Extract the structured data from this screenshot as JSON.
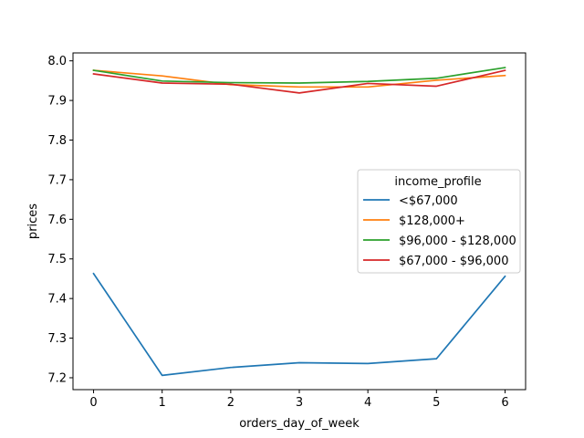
{
  "chart_data": {
    "type": "line",
    "xlabel": "orders_day_of_week",
    "ylabel": "prices",
    "x": [
      0,
      1,
      2,
      3,
      4,
      5,
      6
    ],
    "xlim": [
      -0.3,
      6.3
    ],
    "ylim": [
      7.17,
      8.02
    ],
    "xticks": [
      0,
      1,
      2,
      3,
      4,
      5,
      6
    ],
    "yticks": [
      7.2,
      7.3,
      7.4,
      7.5,
      7.6,
      7.7,
      7.8,
      7.9,
      8.0
    ],
    "ytick_labels": [
      "7.2",
      "7.3",
      "7.4",
      "7.5",
      "7.6",
      "7.7",
      "7.8",
      "7.9",
      "8.0"
    ],
    "grid": false,
    "legend": {
      "title": "income_profile",
      "placement": "center-right"
    },
    "series": [
      {
        "name": "<$67,000",
        "color": "#1f77b4",
        "values": [
          7.463,
          7.206,
          7.226,
          7.238,
          7.236,
          7.248,
          7.456
        ]
      },
      {
        "name": "$128,000+",
        "color": "#ff7f0e",
        "values": [
          7.976,
          7.962,
          7.94,
          7.934,
          7.934,
          7.951,
          7.963
        ]
      },
      {
        "name": "$96,000 - $128,000",
        "color": "#2ca02c",
        "values": [
          7.976,
          7.949,
          7.945,
          7.944,
          7.948,
          7.956,
          7.983
        ]
      },
      {
        "name": "$67,000 - $96,000",
        "color": "#d62728",
        "values": [
          7.967,
          7.944,
          7.941,
          7.919,
          7.943,
          7.936,
          7.976
        ]
      }
    ]
  }
}
